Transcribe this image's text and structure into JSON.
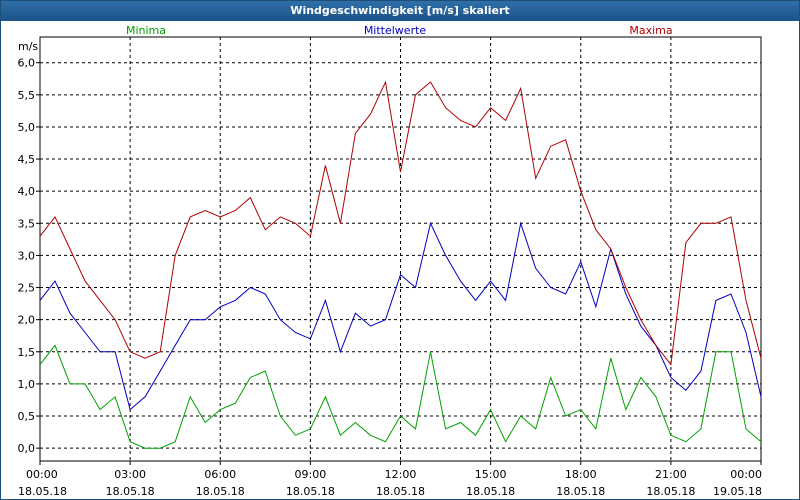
{
  "window": {
    "title": "Windgeschwindigkeit [m/s] skaliert"
  },
  "chart_data": {
    "type": "line",
    "title": "Windgeschwindigkeit [m/s] skaliert",
    "ylabel": "m/s",
    "ylim": [
      -0.2,
      6.4
    ],
    "yticks": [
      "6,0",
      "5,5",
      "5,0",
      "4,5",
      "4,0",
      "3,5",
      "3,0",
      "2,5",
      "2,0",
      "1,5",
      "1,0",
      "0,5",
      "0,0"
    ],
    "ytick_values": [
      6.0,
      5.5,
      5.0,
      4.5,
      4.0,
      3.5,
      3.0,
      2.5,
      2.0,
      1.5,
      1.0,
      0.5,
      0.0
    ],
    "xlim": [
      0,
      24
    ],
    "xticks": [
      {
        "time": "00:00",
        "date": "18.05.18",
        "h": 0
      },
      {
        "time": "03:00",
        "date": "18.05.18",
        "h": 3
      },
      {
        "time": "06:00",
        "date": "18.05.18",
        "h": 6
      },
      {
        "time": "09:00",
        "date": "18.05.18",
        "h": 9
      },
      {
        "time": "12:00",
        "date": "18.05.18",
        "h": 12
      },
      {
        "time": "15:00",
        "date": "18.05.18",
        "h": 15
      },
      {
        "time": "18:00",
        "date": "18.05.18",
        "h": 18
      },
      {
        "time": "21:00",
        "date": "18.05.18",
        "h": 21
      },
      {
        "time": "00:00",
        "date": "19.05.18",
        "h": 24
      }
    ],
    "grid": true,
    "legend_position": "top",
    "series": [
      {
        "name": "Minima",
        "color": "#00a000",
        "x": [
          0,
          0.5,
          1,
          1.5,
          2,
          2.5,
          3,
          3.5,
          4,
          4.5,
          5,
          5.5,
          6,
          6.5,
          7,
          7.5,
          8,
          8.5,
          9,
          9.5,
          10,
          10.5,
          11,
          11.5,
          12,
          12.5,
          13,
          13.5,
          14,
          14.5,
          15,
          15.5,
          16,
          16.5,
          17,
          17.5,
          18,
          18.5,
          19,
          19.5,
          20,
          20.5,
          21,
          21.5,
          22,
          22.5,
          23,
          23.5,
          24
        ],
        "values": [
          1.3,
          1.6,
          1.0,
          1.0,
          0.6,
          0.8,
          0.1,
          0.0,
          0.0,
          0.1,
          0.8,
          0.4,
          0.6,
          0.7,
          1.1,
          1.2,
          0.5,
          0.2,
          0.3,
          0.8,
          0.2,
          0.4,
          0.2,
          0.1,
          0.5,
          0.3,
          1.5,
          0.3,
          0.4,
          0.2,
          0.6,
          0.1,
          0.5,
          0.3,
          1.1,
          0.5,
          0.6,
          0.3,
          1.4,
          0.6,
          1.1,
          0.8,
          0.2,
          0.1,
          0.3,
          1.5,
          1.5,
          0.3,
          0.1
        ]
      },
      {
        "name": "Mittelwerte",
        "color": "#0000c0",
        "x": [
          0,
          0.5,
          1,
          1.5,
          2,
          2.5,
          3,
          3.5,
          4,
          4.5,
          5,
          5.5,
          6,
          6.5,
          7,
          7.5,
          8,
          8.5,
          9,
          9.5,
          10,
          10.5,
          11,
          11.5,
          12,
          12.5,
          13,
          13.5,
          14,
          14.5,
          15,
          15.5,
          16,
          16.5,
          17,
          17.5,
          18,
          18.5,
          19,
          19.5,
          20,
          20.5,
          21,
          21.5,
          22,
          22.5,
          23,
          23.5,
          24
        ],
        "values": [
          2.3,
          2.6,
          2.1,
          1.8,
          1.5,
          1.5,
          0.6,
          0.8,
          1.2,
          1.6,
          2.0,
          2.0,
          2.2,
          2.3,
          2.5,
          2.4,
          2.0,
          1.8,
          1.7,
          2.3,
          1.5,
          2.1,
          1.9,
          2.0,
          2.7,
          2.5,
          3.5,
          3.0,
          2.6,
          2.3,
          2.6,
          2.3,
          3.5,
          2.8,
          2.5,
          2.4,
          2.9,
          2.2,
          3.1,
          2.4,
          1.9,
          1.6,
          1.1,
          0.9,
          1.2,
          2.3,
          2.4,
          1.8,
          0.8
        ]
      },
      {
        "name": "Maxima",
        "color": "#b00000",
        "x": [
          0,
          0.5,
          1,
          1.5,
          2,
          2.5,
          3,
          3.5,
          4,
          4.5,
          5,
          5.5,
          6,
          6.5,
          7,
          7.5,
          8,
          8.5,
          9,
          9.5,
          10,
          10.5,
          11,
          11.5,
          12,
          12.5,
          13,
          13.5,
          14,
          14.5,
          15,
          15.5,
          16,
          16.5,
          17,
          17.5,
          18,
          18.5,
          19,
          19.5,
          20,
          20.5,
          21,
          21.5,
          22,
          22.5,
          23,
          23.5,
          24
        ],
        "values": [
          3.3,
          3.6,
          3.1,
          2.6,
          2.3,
          2.0,
          1.5,
          1.4,
          1.5,
          3.0,
          3.6,
          3.7,
          3.6,
          3.7,
          3.9,
          3.4,
          3.6,
          3.5,
          3.3,
          4.4,
          3.5,
          4.9,
          5.2,
          5.7,
          4.3,
          5.5,
          5.7,
          5.3,
          5.1,
          5.0,
          5.3,
          5.1,
          5.6,
          4.2,
          4.7,
          4.8,
          4.0,
          3.4,
          3.1,
          2.5,
          2.0,
          1.6,
          1.3,
          3.2,
          3.5,
          3.5,
          3.6,
          2.3,
          1.4
        ]
      }
    ]
  }
}
